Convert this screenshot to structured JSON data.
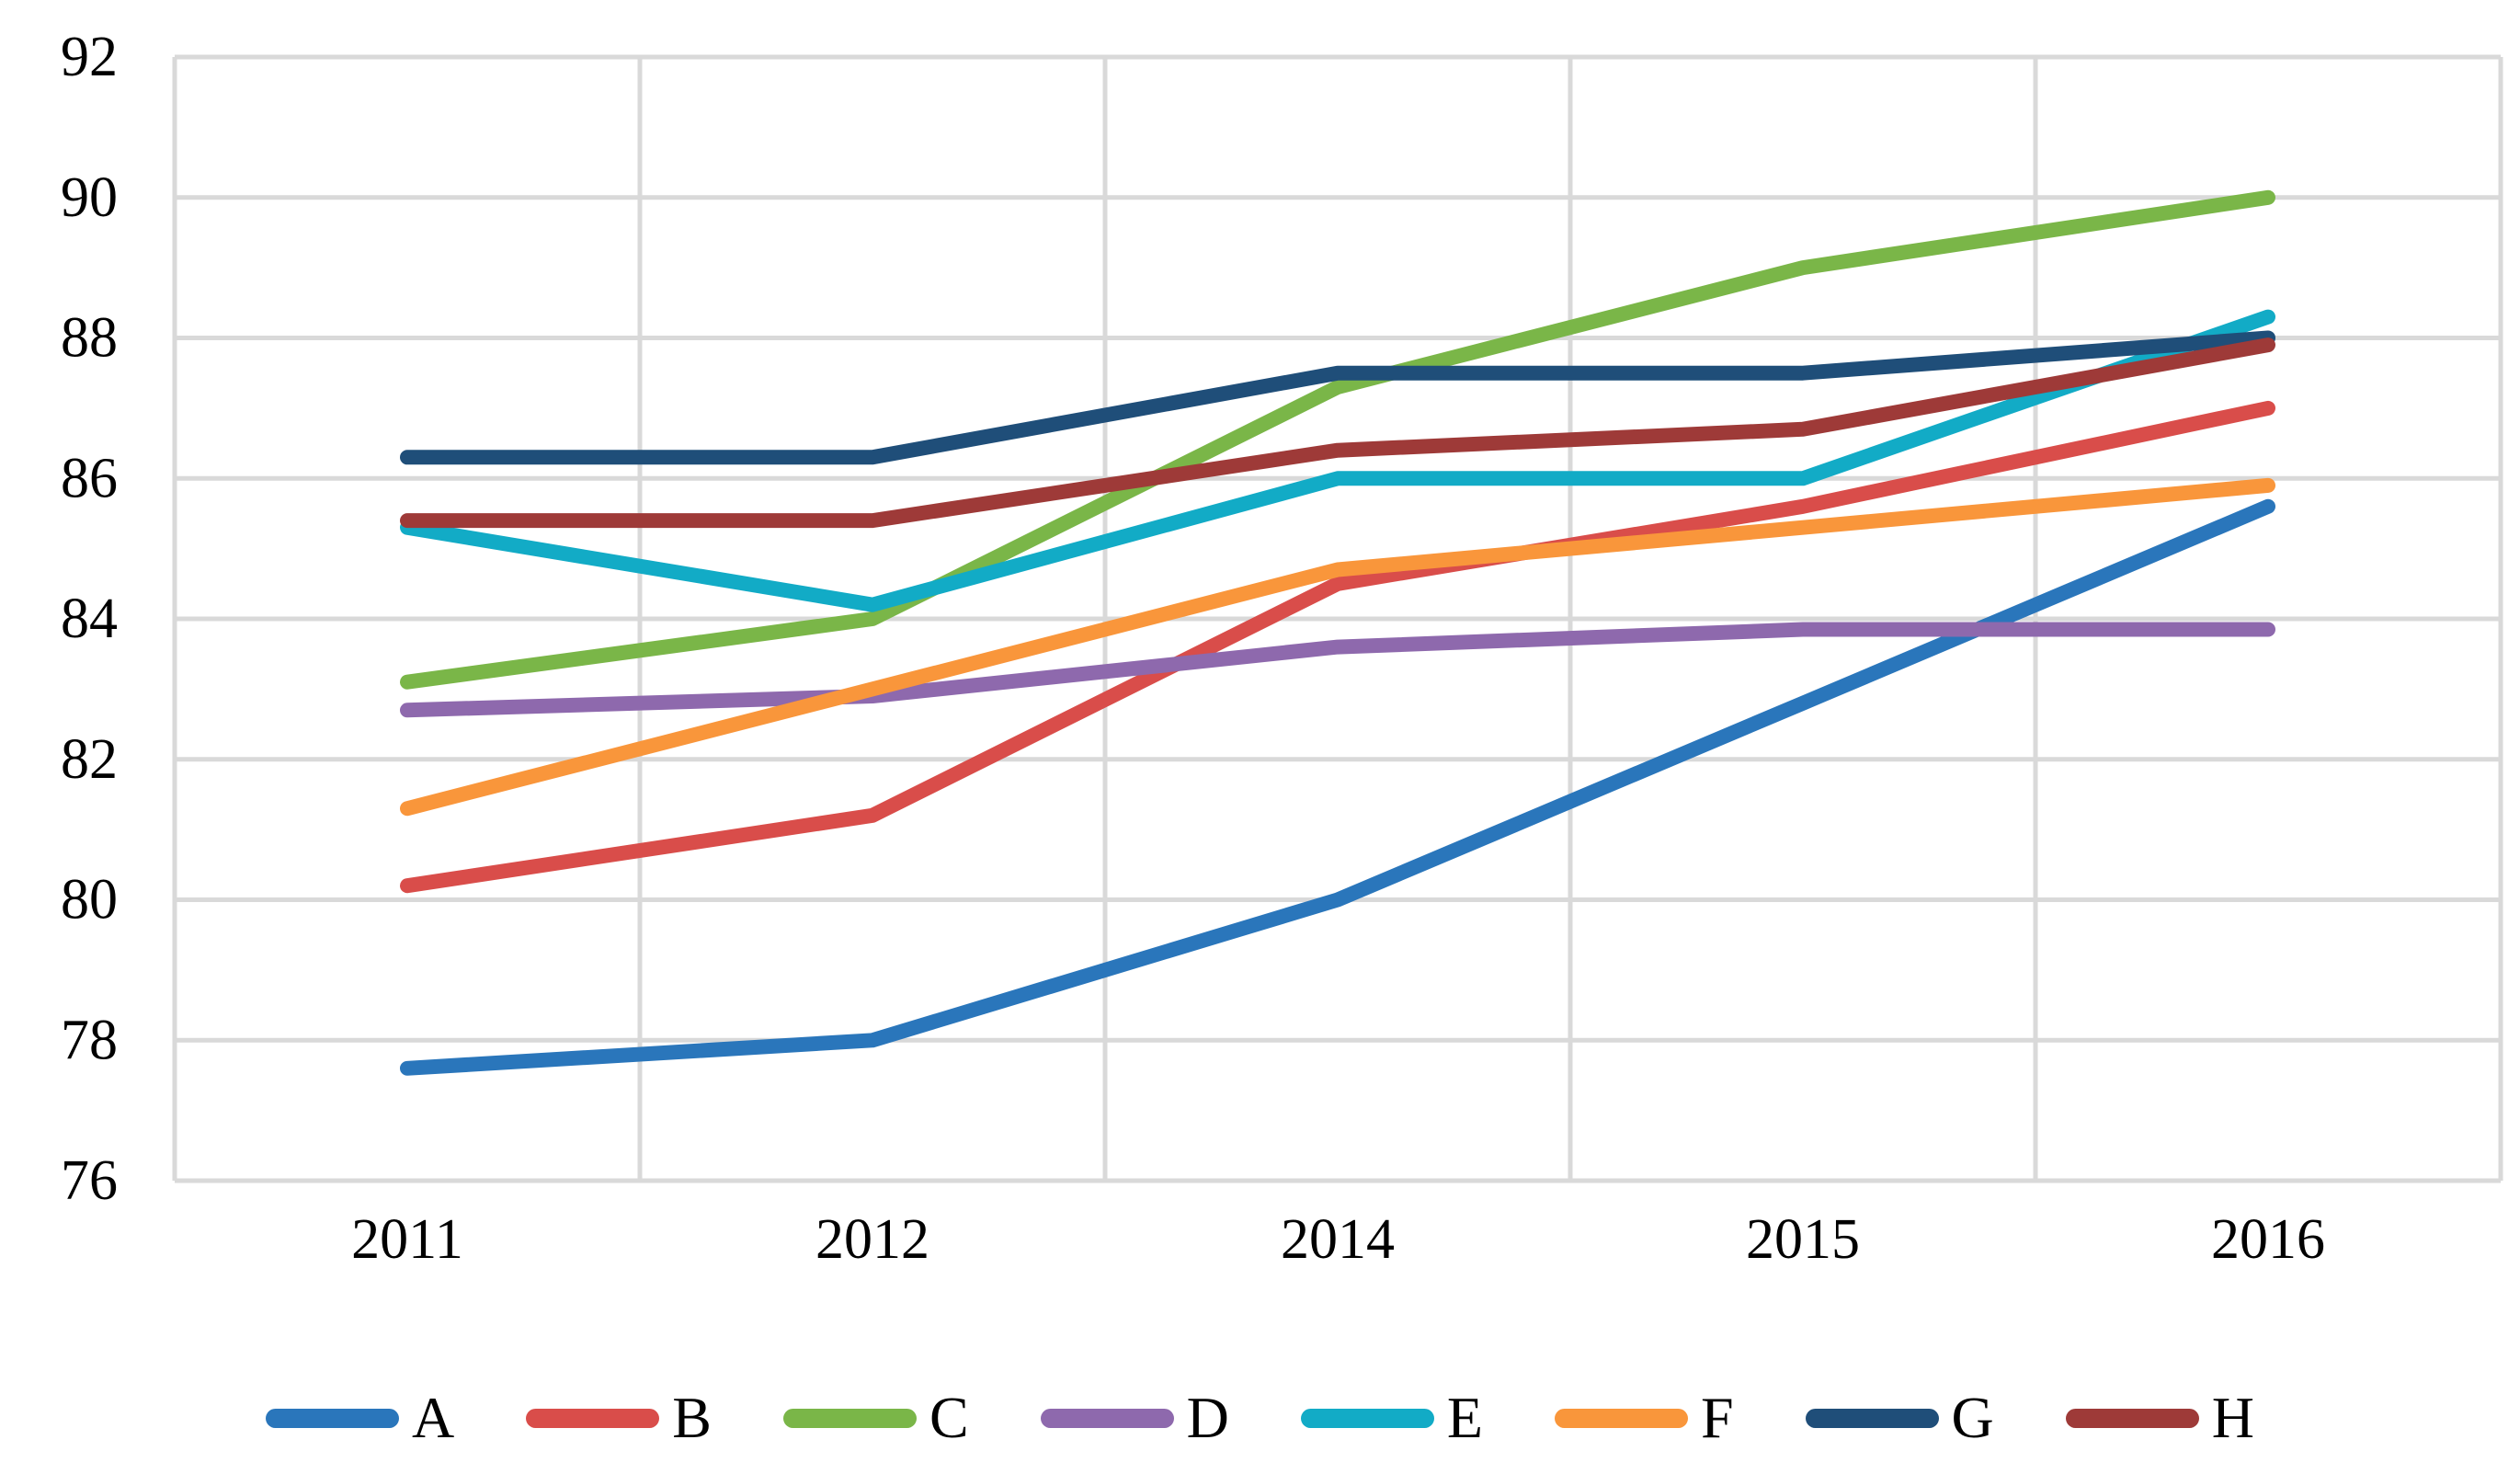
{
  "figure": {
    "background_color": "#FFFFFF",
    "gridline_color": "#D9D9D9",
    "text_color": "#000000"
  },
  "chart_data": {
    "type": "line",
    "title": "",
    "xlabel": "",
    "ylabel": "",
    "categories": [
      "2011",
      "2012",
      "2014",
      "2015",
      "2016"
    ],
    "series": [
      {
        "name": "A",
        "color": "#2A76BB",
        "values": [
          77.6,
          78.0,
          80.0,
          82.8,
          85.6
        ]
      },
      {
        "name": "B",
        "color": "#D94D4A",
        "values": [
          80.2,
          81.2,
          84.5,
          85.6,
          87.0
        ]
      },
      {
        "name": "C",
        "color": "#7AB648",
        "values": [
          83.1,
          84.0,
          87.3,
          89.0,
          90.0
        ]
      },
      {
        "name": "D",
        "color": "#8E69AD",
        "values": [
          82.7,
          82.9,
          83.6,
          83.85,
          83.85
        ]
      },
      {
        "name": "E",
        "color": "#12ABC6",
        "values": [
          85.3,
          84.2,
          86.0,
          86.0,
          88.3
        ]
      },
      {
        "name": "F",
        "color": "#F9963B",
        "values": [
          81.3,
          83.0,
          84.7,
          85.3,
          85.9
        ]
      },
      {
        "name": "G",
        "color": "#1F4E79",
        "values": [
          86.3,
          86.3,
          87.5,
          87.5,
          88.0
        ]
      },
      {
        "name": "H",
        "color": "#9E3A38",
        "values": [
          85.4,
          85.4,
          86.4,
          86.7,
          87.9
        ]
      }
    ],
    "ylim": [
      76,
      92
    ],
    "y_ticks": [
      92,
      90,
      88,
      86,
      84,
      82,
      80,
      78,
      76
    ],
    "grid": true,
    "legend_position": "bottom"
  }
}
